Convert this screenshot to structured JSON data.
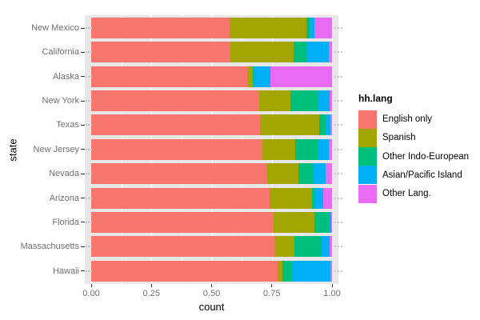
{
  "figure": {
    "background": "#FFFFFF",
    "panel_background": "#E7E7E7",
    "gridline_color": "#FFFFFF"
  },
  "axes": {
    "x": {
      "title": "count",
      "tick_labels": [
        "0.00",
        "0.25",
        "0.50",
        "0.75",
        "1.00"
      ],
      "tick_values": [
        0,
        0.25,
        0.5,
        0.75,
        1.0
      ],
      "minor_tick_values": [
        0.125,
        0.375,
        0.625,
        0.875
      ],
      "range": [
        0,
        1
      ]
    },
    "y": {
      "title": "state"
    }
  },
  "legend": {
    "title": "hh.lang",
    "position": "right",
    "items": [
      {
        "label": "English only",
        "color": "#F8766D"
      },
      {
        "label": "Spanish",
        "color": "#A3A500"
      },
      {
        "label": "Other Indo-European",
        "color": "#00BF7D"
      },
      {
        "label": "Asian/Pacific Island",
        "color": "#00B0F6"
      },
      {
        "label": "Other Lang.",
        "color": "#E76BF3"
      }
    ]
  },
  "chart_data": {
    "type": "bar",
    "orientation": "horizontal",
    "stacked": true,
    "normalized": true,
    "title": "",
    "xlabel": "count",
    "ylabel": "state",
    "xlim": [
      0,
      1
    ],
    "grid": true,
    "legend_title": "hh.lang",
    "categories": [
      "New Mexico",
      "California",
      "Alaska",
      "New York",
      "Texas",
      "New Jersey",
      "Nevada",
      "Arizona",
      "Florida",
      "Massachusetts",
      "Hawaii"
    ],
    "series": [
      {
        "name": "English only",
        "color": "#F8766D",
        "values": [
          0.574,
          0.578,
          0.649,
          0.699,
          0.701,
          0.712,
          0.731,
          0.742,
          0.756,
          0.762,
          0.775
        ]
      },
      {
        "name": "Spanish",
        "color": "#A3A500",
        "values": [
          0.321,
          0.261,
          0.022,
          0.129,
          0.247,
          0.136,
          0.13,
          0.175,
          0.171,
          0.083,
          0.02
        ]
      },
      {
        "name": "Other Indo-European",
        "color": "#00BF7D",
        "values": [
          0.016,
          0.058,
          0.004,
          0.114,
          0.024,
          0.093,
          0.064,
          0.014,
          0.059,
          0.111,
          0.039
        ]
      },
      {
        "name": "Asian/Pacific Island",
        "color": "#00B0F6",
        "values": [
          0.015,
          0.09,
          0.068,
          0.048,
          0.02,
          0.046,
          0.047,
          0.033,
          0.01,
          0.033,
          0.161
        ]
      },
      {
        "name": "Other Lang.",
        "color": "#E76BF3",
        "values": [
          0.074,
          0.013,
          0.257,
          0.01,
          0.008,
          0.013,
          0.028,
          0.036,
          0.004,
          0.011,
          0.005
        ]
      }
    ]
  }
}
